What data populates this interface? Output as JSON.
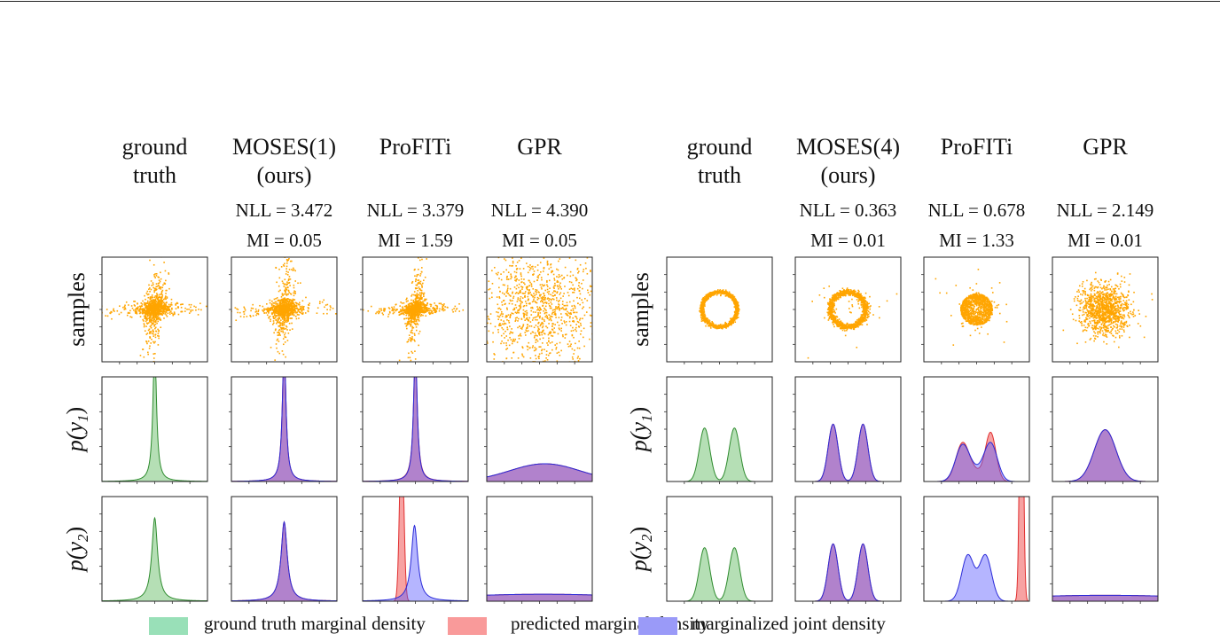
{
  "columns": [
    {
      "title1": "ground",
      "title2": "truth",
      "nll": "",
      "mi": ""
    },
    {
      "title1": "MOSES(1)",
      "title2": "(ours)",
      "nll": "NLL = 3.472",
      "mi": "MI = 0.05"
    },
    {
      "title1": "ProFITi",
      "title2": "",
      "nll": "NLL = 3.379",
      "mi": "MI = 1.59"
    },
    {
      "title1": "GPR",
      "title2": "",
      "nll": "NLL = 4.390",
      "mi": "MI = 0.05"
    },
    {
      "title1": "ground",
      "title2": "truth",
      "nll": "",
      "mi": ""
    },
    {
      "title1": "MOSES(4)",
      "title2": "(ours)",
      "nll": "NLL = 0.363",
      "mi": "MI = 0.01"
    },
    {
      "title1": "ProFITi",
      "title2": "",
      "nll": "NLL = 0.678",
      "mi": "MI = 1.33"
    },
    {
      "title1": "GPR",
      "title2": "",
      "nll": "NLL = 2.149",
      "mi": "MI = 0.01"
    }
  ],
  "rows": {
    "samples": "samples",
    "p": "p",
    "y1": "(y",
    "y1sub": "1",
    "y2sub": "2",
    "close": ")"
  },
  "legend": [
    {
      "label": "ground truth marginal density",
      "color": "#99e0b8"
    },
    {
      "label": "predicted marginal density",
      "color": "#f99a9a"
    },
    {
      "label": "marginalized joint density",
      "color": "#9a9af8"
    }
  ],
  "colors": {
    "samples": "#ffa500",
    "gt_fill": "#b5dfb5",
    "gt_line": "#2e8b2e",
    "pred_fill": "rgba(240,70,70,0.5)",
    "pred_line": "#e03030",
    "joint_fill": "rgba(90,90,255,0.45)",
    "joint_line": "#2a2ad8"
  },
  "chart_data": {
    "type": "scatter+area",
    "xlim": [
      -3,
      3
    ],
    "panels": [
      {
        "col": 0,
        "row": "samples",
        "type": "scatter",
        "distribution": "cross"
      },
      {
        "col": 1,
        "row": "samples",
        "type": "scatter",
        "distribution": "cross"
      },
      {
        "col": 2,
        "row": "samples",
        "type": "scatter",
        "distribution": "cross-compact"
      },
      {
        "col": 3,
        "row": "samples",
        "type": "scatter",
        "distribution": "uniform-wide"
      },
      {
        "col": 4,
        "row": "samples",
        "type": "scatter",
        "distribution": "ring",
        "radius": 1.0
      },
      {
        "col": 5,
        "row": "samples",
        "type": "scatter",
        "distribution": "ring-noisy",
        "radius": 1.0
      },
      {
        "col": 6,
        "row": "samples",
        "type": "scatter",
        "distribution": "disk",
        "radius": 0.9
      },
      {
        "col": 7,
        "row": "samples",
        "type": "scatter",
        "distribution": "gaussian",
        "sd": 0.7
      },
      {
        "col": 0,
        "row": "p(y1)",
        "type": "area",
        "ylim": [
          0,
          2
        ],
        "curves": [
          {
            "kind": "gt",
            "components": [
              {
                "dist": "cauchy",
                "loc": 0,
                "scale": 0.12,
                "w": 1
              }
            ]
          }
        ]
      },
      {
        "col": 1,
        "row": "p(y1)",
        "type": "area",
        "ylim": [
          0,
          2
        ],
        "curves": [
          {
            "kind": "pred",
            "components": [
              {
                "dist": "cauchy",
                "loc": 0,
                "scale": 0.12,
                "w": 1
              }
            ]
          },
          {
            "kind": "joint",
            "components": [
              {
                "dist": "cauchy",
                "loc": 0,
                "scale": 0.12,
                "w": 1
              }
            ]
          }
        ]
      },
      {
        "col": 2,
        "row": "p(y1)",
        "type": "area",
        "ylim": [
          0,
          2
        ],
        "curves": [
          {
            "kind": "pred",
            "components": [
              {
                "dist": "cauchy",
                "loc": 0,
                "scale": 0.13,
                "w": 1
              }
            ]
          },
          {
            "kind": "joint",
            "components": [
              {
                "dist": "cauchy",
                "loc": 0,
                "scale": 0.12,
                "w": 1
              }
            ]
          }
        ]
      },
      {
        "col": 3,
        "row": "p(y1)",
        "type": "area",
        "ylim": [
          0,
          1
        ],
        "curves": [
          {
            "kind": "pred",
            "components": [
              {
                "dist": "normal",
                "loc": 0.3,
                "scale": 2.0,
                "w": 0.85
              }
            ]
          },
          {
            "kind": "joint",
            "components": [
              {
                "dist": "normal",
                "loc": 0.3,
                "scale": 2.0,
                "w": 0.85
              }
            ]
          }
        ]
      },
      {
        "col": 4,
        "row": "p(y1)",
        "type": "area",
        "ylim": [
          0,
          1.3
        ],
        "curves": [
          {
            "kind": "gt",
            "components": [
              {
                "dist": "normal",
                "loc": -0.85,
                "scale": 0.3,
                "w": 0.5
              },
              {
                "dist": "normal",
                "loc": 0.85,
                "scale": 0.3,
                "w": 0.5
              }
            ]
          }
        ]
      },
      {
        "col": 5,
        "row": "p(y1)",
        "type": "area",
        "ylim": [
          0,
          1.3
        ],
        "curves": [
          {
            "kind": "pred",
            "components": [
              {
                "dist": "normal",
                "loc": -0.85,
                "scale": 0.28,
                "w": 0.5
              },
              {
                "dist": "normal",
                "loc": 0.85,
                "scale": 0.28,
                "w": 0.5
              }
            ]
          },
          {
            "kind": "joint",
            "components": [
              {
                "dist": "normal",
                "loc": -0.85,
                "scale": 0.28,
                "w": 0.5
              },
              {
                "dist": "normal",
                "loc": 0.85,
                "scale": 0.28,
                "w": 0.5
              }
            ]
          }
        ]
      },
      {
        "col": 6,
        "row": "p(y1)",
        "type": "area",
        "ylim": [
          0,
          1.3
        ],
        "curves": [
          {
            "kind": "pred",
            "components": [
              {
                "dist": "normal",
                "loc": -0.8,
                "scale": 0.38,
                "w": 0.45
              },
              {
                "dist": "normal",
                "loc": 0.8,
                "scale": 0.3,
                "w": 0.45
              },
              {
                "dist": "normal",
                "loc": 0,
                "scale": 0.4,
                "w": 0.1
              }
            ]
          },
          {
            "kind": "joint",
            "components": [
              {
                "dist": "normal",
                "loc": -0.8,
                "scale": 0.4,
                "w": 0.45
              },
              {
                "dist": "normal",
                "loc": 0.8,
                "scale": 0.38,
                "w": 0.45
              },
              {
                "dist": "normal",
                "loc": 0,
                "scale": 0.4,
                "w": 0.1
              }
            ]
          }
        ]
      },
      {
        "col": 7,
        "row": "p(y1)",
        "type": "area",
        "ylim": [
          0,
          1.3
        ],
        "curves": [
          {
            "kind": "pred",
            "components": [
              {
                "dist": "normal",
                "loc": 0,
                "scale": 0.62,
                "w": 1
              }
            ]
          },
          {
            "kind": "joint",
            "components": [
              {
                "dist": "normal",
                "loc": 0,
                "scale": 0.62,
                "w": 1
              }
            ]
          }
        ]
      },
      {
        "col": 0,
        "row": "p(y2)",
        "type": "area",
        "ylim": [
          0,
          2
        ],
        "curves": [
          {
            "kind": "gt",
            "components": [
              {
                "dist": "cauchy",
                "loc": 0,
                "scale": 0.2,
                "w": 1
              }
            ]
          }
        ]
      },
      {
        "col": 1,
        "row": "p(y2)",
        "type": "area",
        "ylim": [
          0,
          2
        ],
        "curves": [
          {
            "kind": "pred",
            "components": [
              {
                "dist": "cauchy",
                "loc": 0,
                "scale": 0.21,
                "w": 1
              }
            ]
          },
          {
            "kind": "joint",
            "components": [
              {
                "dist": "cauchy",
                "loc": 0,
                "scale": 0.21,
                "w": 1
              }
            ]
          }
        ]
      },
      {
        "col": 2,
        "row": "p(y2)",
        "type": "area",
        "ylim": [
          0,
          2
        ],
        "curves": [
          {
            "kind": "pred",
            "components": [
              {
                "dist": "normal",
                "loc": -0.78,
                "scale": 0.12,
                "w": 1
              }
            ]
          },
          {
            "kind": "joint",
            "components": [
              {
                "dist": "cauchy",
                "loc": -0.05,
                "scale": 0.22,
                "w": 1
              }
            ]
          }
        ]
      },
      {
        "col": 3,
        "row": "p(y2)",
        "type": "area",
        "ylim": [
          0,
          1
        ],
        "curves": [
          {
            "kind": "pred",
            "components": [
              {
                "dist": "normal",
                "loc": 0.2,
                "scale": 6,
                "w": 1
              }
            ]
          },
          {
            "kind": "joint",
            "components": [
              {
                "dist": "normal",
                "loc": 0.2,
                "scale": 6,
                "w": 1
              }
            ]
          }
        ]
      },
      {
        "col": 4,
        "row": "p(y2)",
        "type": "area",
        "ylim": [
          0,
          1.3
        ],
        "curves": [
          {
            "kind": "gt",
            "components": [
              {
                "dist": "normal",
                "loc": -0.85,
                "scale": 0.3,
                "w": 0.5
              },
              {
                "dist": "normal",
                "loc": 0.85,
                "scale": 0.3,
                "w": 0.5
              }
            ]
          }
        ]
      },
      {
        "col": 5,
        "row": "p(y2)",
        "type": "area",
        "ylim": [
          0,
          1.3
        ],
        "curves": [
          {
            "kind": "pred",
            "components": [
              {
                "dist": "normal",
                "loc": -0.85,
                "scale": 0.28,
                "w": 0.5
              },
              {
                "dist": "normal",
                "loc": 0.85,
                "scale": 0.28,
                "w": 0.5
              }
            ]
          },
          {
            "kind": "joint",
            "components": [
              {
                "dist": "normal",
                "loc": -0.85,
                "scale": 0.28,
                "w": 0.5
              },
              {
                "dist": "normal",
                "loc": 0.85,
                "scale": 0.28,
                "w": 0.5
              }
            ]
          }
        ]
      },
      {
        "col": 6,
        "row": "p(y2)",
        "type": "area",
        "ylim": [
          0,
          1.3
        ],
        "curves": [
          {
            "kind": "pred",
            "components": [
              {
                "dist": "normal",
                "loc": 2.55,
                "scale": 0.1,
                "w": 1
              }
            ]
          },
          {
            "kind": "joint",
            "components": [
              {
                "dist": "normal",
                "loc": -0.5,
                "scale": 0.35,
                "w": 0.5
              },
              {
                "dist": "normal",
                "loc": 0.5,
                "scale": 0.35,
                "w": 0.5
              }
            ]
          }
        ]
      },
      {
        "col": 7,
        "row": "p(y2)",
        "type": "area",
        "ylim": [
          0,
          1.3
        ],
        "curves": [
          {
            "kind": "pred",
            "components": [
              {
                "dist": "normal",
                "loc": 0,
                "scale": 6,
                "w": 1.1
              }
            ]
          },
          {
            "kind": "joint",
            "components": [
              {
                "dist": "normal",
                "loc": 0,
                "scale": 6,
                "w": 1.1
              }
            ]
          }
        ]
      }
    ]
  }
}
